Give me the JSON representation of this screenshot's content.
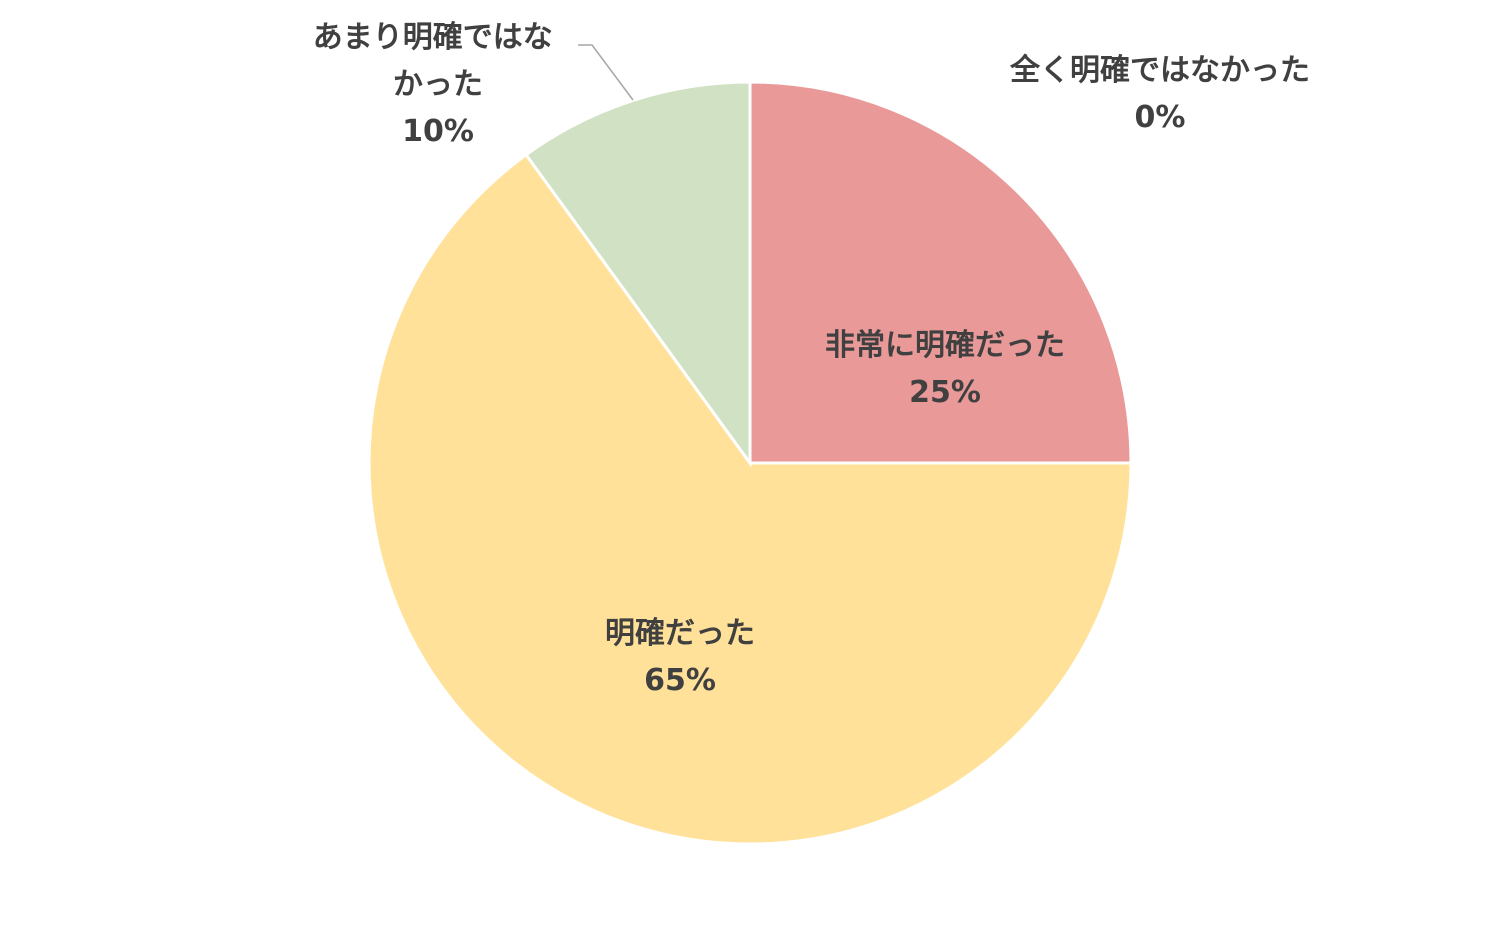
{
  "chart_data": {
    "type": "pie",
    "categories": [
      "非常に明確だった",
      "明確だった",
      "あまり明確ではなかった",
      "全く明確ではなかった"
    ],
    "values": [
      25,
      65,
      10,
      0
    ],
    "value_labels": [
      "25%",
      "65%",
      "10%",
      "0%"
    ],
    "colors": [
      "#EA9999",
      "#FFE199",
      "#D1E2C4",
      "#C9C9C9"
    ],
    "start_angle_deg": 0,
    "direction": "clockwise",
    "legend": "none"
  }
}
